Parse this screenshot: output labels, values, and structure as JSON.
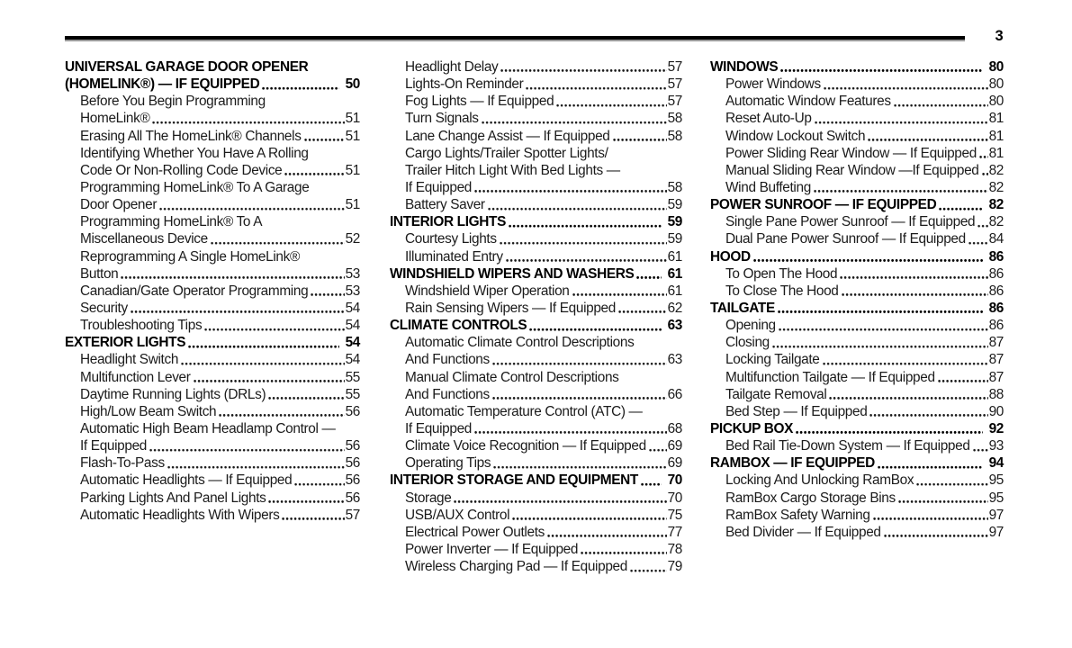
{
  "page": {
    "number": "3"
  },
  "toc": {
    "columns": [
      {
        "entries": [
          {
            "kind": "section",
            "text": "UNIVERSAL GARAGE DOOR OPENER",
            "page": ""
          },
          {
            "kind": "section",
            "text": "(HOMELINK®) — IF EQUIPPED",
            "page": "50"
          },
          {
            "kind": "item",
            "text": "Before You Begin Programming",
            "page": ""
          },
          {
            "kind": "item",
            "text": "HomeLink®",
            "page": "51"
          },
          {
            "kind": "item",
            "text": "Erasing All The HomeLink® Channels",
            "page": "51"
          },
          {
            "kind": "item",
            "text": "Identifying Whether You Have A Rolling",
            "page": ""
          },
          {
            "kind": "item",
            "text": "Code Or Non-Rolling Code Device",
            "page": "51"
          },
          {
            "kind": "item",
            "text": "Programming HomeLink® To A Garage",
            "page": ""
          },
          {
            "kind": "item",
            "text": "Door Opener",
            "page": "51"
          },
          {
            "kind": "item",
            "text": "Programming HomeLink® To A",
            "page": ""
          },
          {
            "kind": "item",
            "text": "Miscellaneous Device",
            "page": "52"
          },
          {
            "kind": "item",
            "text": "Reprogramming A Single HomeLink®",
            "page": ""
          },
          {
            "kind": "item",
            "text": "Button",
            "page": "53"
          },
          {
            "kind": "item",
            "text": "Canadian/Gate Operator Programming",
            "page": "53"
          },
          {
            "kind": "item",
            "text": "Security",
            "page": "54"
          },
          {
            "kind": "item",
            "text": "Troubleshooting Tips",
            "page": "54"
          },
          {
            "kind": "section",
            "text": "EXTERIOR LIGHTS",
            "page": "54"
          },
          {
            "kind": "item",
            "text": "Headlight Switch",
            "page": "54"
          },
          {
            "kind": "item",
            "text": "Multifunction Lever",
            "page": "55"
          },
          {
            "kind": "item",
            "text": "Daytime Running Lights (DRLs)",
            "page": "55"
          },
          {
            "kind": "item",
            "text": "High/Low Beam Switch",
            "page": "56"
          },
          {
            "kind": "item",
            "text": "Automatic High Beam Headlamp Control —",
            "page": ""
          },
          {
            "kind": "item",
            "text": "If Equipped",
            "page": "56"
          },
          {
            "kind": "item",
            "text": "Flash-To-Pass",
            "page": "56"
          },
          {
            "kind": "item",
            "text": "Automatic Headlights — If Equipped",
            "page": "56"
          },
          {
            "kind": "item",
            "text": "Parking Lights And Panel Lights",
            "page": "56"
          },
          {
            "kind": "item",
            "text": "Automatic Headlights With Wipers",
            "page": "57"
          }
        ]
      },
      {
        "entries": [
          {
            "kind": "item",
            "text": "Headlight Delay",
            "page": "57"
          },
          {
            "kind": "item",
            "text": "Lights-On Reminder",
            "page": "57"
          },
          {
            "kind": "item",
            "text": "Fog Lights — If Equipped",
            "page": "57"
          },
          {
            "kind": "item",
            "text": "Turn Signals",
            "page": "58"
          },
          {
            "kind": "item",
            "text": "Lane Change Assist — If Equipped",
            "page": "58"
          },
          {
            "kind": "item",
            "text": "Cargo Lights/Trailer Spotter Lights/",
            "page": ""
          },
          {
            "kind": "item",
            "text": "Trailer Hitch Light With Bed Lights —",
            "page": ""
          },
          {
            "kind": "item",
            "text": "If Equipped",
            "page": "58"
          },
          {
            "kind": "item",
            "text": "Battery Saver",
            "page": "59"
          },
          {
            "kind": "section",
            "text": "INTERIOR LIGHTS",
            "page": "59"
          },
          {
            "kind": "item",
            "text": "Courtesy Lights",
            "page": "59"
          },
          {
            "kind": "item",
            "text": "Illuminated Entry",
            "page": "61"
          },
          {
            "kind": "section",
            "text": "WINDSHIELD WIPERS AND WASHERS",
            "page": "61"
          },
          {
            "kind": "item",
            "text": "Windshield Wiper Operation",
            "page": "61"
          },
          {
            "kind": "item",
            "text": "Rain Sensing Wipers — If Equipped",
            "page": "62"
          },
          {
            "kind": "section",
            "text": "CLIMATE CONTROLS",
            "page": "63"
          },
          {
            "kind": "item",
            "text": "Automatic Climate Control Descriptions",
            "page": ""
          },
          {
            "kind": "item",
            "text": "And Functions",
            "page": "63"
          },
          {
            "kind": "item",
            "text": "Manual Climate Control Descriptions",
            "page": ""
          },
          {
            "kind": "item",
            "text": "And Functions",
            "page": "66"
          },
          {
            "kind": "item",
            "text": "Automatic Temperature Control (ATC) —",
            "page": ""
          },
          {
            "kind": "item",
            "text": "If Equipped",
            "page": "68"
          },
          {
            "kind": "item",
            "text": "Climate Voice Recognition — If Equipped",
            "page": "69"
          },
          {
            "kind": "item",
            "text": "Operating Tips",
            "page": "69"
          },
          {
            "kind": "section",
            "text": "INTERIOR STORAGE AND EQUIPMENT",
            "page": "70"
          },
          {
            "kind": "item",
            "text": "Storage",
            "page": "70"
          },
          {
            "kind": "item",
            "text": "USB/AUX Control",
            "page": "75"
          },
          {
            "kind": "item",
            "text": "Electrical Power Outlets",
            "page": "77"
          },
          {
            "kind": "item",
            "text": "Power Inverter — If Equipped",
            "page": "78"
          },
          {
            "kind": "item",
            "text": "Wireless Charging Pad — If Equipped",
            "page": "79"
          }
        ]
      },
      {
        "entries": [
          {
            "kind": "section",
            "text": "WINDOWS",
            "page": "80"
          },
          {
            "kind": "item",
            "text": "Power Windows",
            "page": "80"
          },
          {
            "kind": "item",
            "text": "Automatic Window Features",
            "page": "80"
          },
          {
            "kind": "item",
            "text": "Reset Auto-Up",
            "page": "81"
          },
          {
            "kind": "item",
            "text": "Window Lockout Switch",
            "page": "81"
          },
          {
            "kind": "item",
            "text": "Power Sliding Rear Window — If Equipped",
            "page": "81"
          },
          {
            "kind": "item",
            "text": "Manual Sliding Rear Window —If Equipped",
            "page": "82"
          },
          {
            "kind": "item",
            "text": "Wind Buffeting",
            "page": "82"
          },
          {
            "kind": "section",
            "text": "POWER SUNROOF — IF EQUIPPED",
            "page": "82"
          },
          {
            "kind": "item",
            "text": "Single Pane Power Sunroof — If Equipped",
            "page": "82"
          },
          {
            "kind": "item",
            "text": "Dual Pane Power Sunroof — If Equipped",
            "page": "84"
          },
          {
            "kind": "section",
            "text": "HOOD",
            "page": "86"
          },
          {
            "kind": "item",
            "text": "To Open The Hood",
            "page": "86"
          },
          {
            "kind": "item",
            "text": "To Close The Hood",
            "page": "86"
          },
          {
            "kind": "section",
            "text": "TAILGATE",
            "page": "86"
          },
          {
            "kind": "item",
            "text": "Opening",
            "page": "86"
          },
          {
            "kind": "item",
            "text": "Closing",
            "page": "87"
          },
          {
            "kind": "item",
            "text": "Locking Tailgate",
            "page": "87"
          },
          {
            "kind": "item",
            "text": "Multifunction Tailgate — If Equipped",
            "page": "87"
          },
          {
            "kind": "item",
            "text": "Tailgate Removal",
            "page": "88"
          },
          {
            "kind": "item",
            "text": "Bed Step — If Equipped",
            "page": "90"
          },
          {
            "kind": "section",
            "text": "PICKUP BOX",
            "page": "92"
          },
          {
            "kind": "item",
            "text": "Bed Rail Tie-Down System — If Equipped",
            "page": "93"
          },
          {
            "kind": "section",
            "text": "RAMBOX — IF EQUIPPED",
            "page": "94"
          },
          {
            "kind": "item",
            "text": "Locking And Unlocking RamBox",
            "page": "95"
          },
          {
            "kind": "item",
            "text": "RamBox Cargo Storage Bins",
            "page": "95"
          },
          {
            "kind": "item",
            "text": "RamBox Safety Warning",
            "page": "97"
          },
          {
            "kind": "item",
            "text": "Bed Divider — If Equipped",
            "page": "97"
          }
        ]
      }
    ]
  }
}
